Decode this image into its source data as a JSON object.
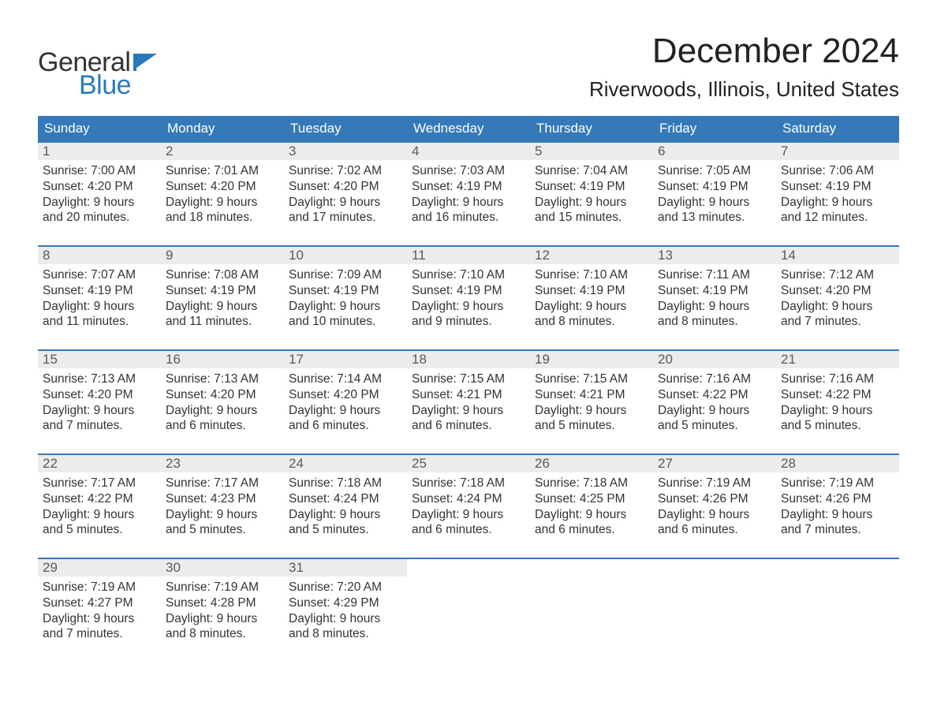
{
  "brand": {
    "word1": "General",
    "word2": "Blue",
    "flag_color": "#2a7ab9"
  },
  "title": "December 2024",
  "location": "Riverwoods, Illinois, United States",
  "colors": {
    "header_bg": "#3679b8",
    "header_text": "#ffffff",
    "daynum_bg": "#ececec",
    "daynum_text": "#5a5a5a",
    "body_text": "#333333",
    "rule": "#3679b8",
    "accent": "#2a7ab9"
  },
  "typography": {
    "title_fontsize": 44,
    "location_fontsize": 26,
    "dow_fontsize": 17,
    "daynum_fontsize": 17,
    "body_fontsize": 15.5,
    "logo_fontsize": 34
  },
  "days_of_week": [
    "Sunday",
    "Monday",
    "Tuesday",
    "Wednesday",
    "Thursday",
    "Friday",
    "Saturday"
  ],
  "labels": {
    "sunrise": "Sunrise:",
    "sunset": "Sunset:",
    "daylight_prefix": "Daylight:"
  },
  "weeks": [
    [
      {
        "n": 1,
        "sunrise": "7:00 AM",
        "sunset": "4:20 PM",
        "daylight": "9 hours and 20 minutes."
      },
      {
        "n": 2,
        "sunrise": "7:01 AM",
        "sunset": "4:20 PM",
        "daylight": "9 hours and 18 minutes."
      },
      {
        "n": 3,
        "sunrise": "7:02 AM",
        "sunset": "4:20 PM",
        "daylight": "9 hours and 17 minutes."
      },
      {
        "n": 4,
        "sunrise": "7:03 AM",
        "sunset": "4:19 PM",
        "daylight": "9 hours and 16 minutes."
      },
      {
        "n": 5,
        "sunrise": "7:04 AM",
        "sunset": "4:19 PM",
        "daylight": "9 hours and 15 minutes."
      },
      {
        "n": 6,
        "sunrise": "7:05 AM",
        "sunset": "4:19 PM",
        "daylight": "9 hours and 13 minutes."
      },
      {
        "n": 7,
        "sunrise": "7:06 AM",
        "sunset": "4:19 PM",
        "daylight": "9 hours and 12 minutes."
      }
    ],
    [
      {
        "n": 8,
        "sunrise": "7:07 AM",
        "sunset": "4:19 PM",
        "daylight": "9 hours and 11 minutes."
      },
      {
        "n": 9,
        "sunrise": "7:08 AM",
        "sunset": "4:19 PM",
        "daylight": "9 hours and 11 minutes."
      },
      {
        "n": 10,
        "sunrise": "7:09 AM",
        "sunset": "4:19 PM",
        "daylight": "9 hours and 10 minutes."
      },
      {
        "n": 11,
        "sunrise": "7:10 AM",
        "sunset": "4:19 PM",
        "daylight": "9 hours and 9 minutes."
      },
      {
        "n": 12,
        "sunrise": "7:10 AM",
        "sunset": "4:19 PM",
        "daylight": "9 hours and 8 minutes."
      },
      {
        "n": 13,
        "sunrise": "7:11 AM",
        "sunset": "4:19 PM",
        "daylight": "9 hours and 8 minutes."
      },
      {
        "n": 14,
        "sunrise": "7:12 AM",
        "sunset": "4:20 PM",
        "daylight": "9 hours and 7 minutes."
      }
    ],
    [
      {
        "n": 15,
        "sunrise": "7:13 AM",
        "sunset": "4:20 PM",
        "daylight": "9 hours and 7 minutes."
      },
      {
        "n": 16,
        "sunrise": "7:13 AM",
        "sunset": "4:20 PM",
        "daylight": "9 hours and 6 minutes."
      },
      {
        "n": 17,
        "sunrise": "7:14 AM",
        "sunset": "4:20 PM",
        "daylight": "9 hours and 6 minutes."
      },
      {
        "n": 18,
        "sunrise": "7:15 AM",
        "sunset": "4:21 PM",
        "daylight": "9 hours and 6 minutes."
      },
      {
        "n": 19,
        "sunrise": "7:15 AM",
        "sunset": "4:21 PM",
        "daylight": "9 hours and 5 minutes."
      },
      {
        "n": 20,
        "sunrise": "7:16 AM",
        "sunset": "4:22 PM",
        "daylight": "9 hours and 5 minutes."
      },
      {
        "n": 21,
        "sunrise": "7:16 AM",
        "sunset": "4:22 PM",
        "daylight": "9 hours and 5 minutes."
      }
    ],
    [
      {
        "n": 22,
        "sunrise": "7:17 AM",
        "sunset": "4:22 PM",
        "daylight": "9 hours and 5 minutes."
      },
      {
        "n": 23,
        "sunrise": "7:17 AM",
        "sunset": "4:23 PM",
        "daylight": "9 hours and 5 minutes."
      },
      {
        "n": 24,
        "sunrise": "7:18 AM",
        "sunset": "4:24 PM",
        "daylight": "9 hours and 5 minutes."
      },
      {
        "n": 25,
        "sunrise": "7:18 AM",
        "sunset": "4:24 PM",
        "daylight": "9 hours and 6 minutes."
      },
      {
        "n": 26,
        "sunrise": "7:18 AM",
        "sunset": "4:25 PM",
        "daylight": "9 hours and 6 minutes."
      },
      {
        "n": 27,
        "sunrise": "7:19 AM",
        "sunset": "4:26 PM",
        "daylight": "9 hours and 6 minutes."
      },
      {
        "n": 28,
        "sunrise": "7:19 AM",
        "sunset": "4:26 PM",
        "daylight": "9 hours and 7 minutes."
      }
    ],
    [
      {
        "n": 29,
        "sunrise": "7:19 AM",
        "sunset": "4:27 PM",
        "daylight": "9 hours and 7 minutes."
      },
      {
        "n": 30,
        "sunrise": "7:19 AM",
        "sunset": "4:28 PM",
        "daylight": "9 hours and 8 minutes."
      },
      {
        "n": 31,
        "sunrise": "7:20 AM",
        "sunset": "4:29 PM",
        "daylight": "9 hours and 8 minutes."
      },
      null,
      null,
      null,
      null
    ]
  ]
}
